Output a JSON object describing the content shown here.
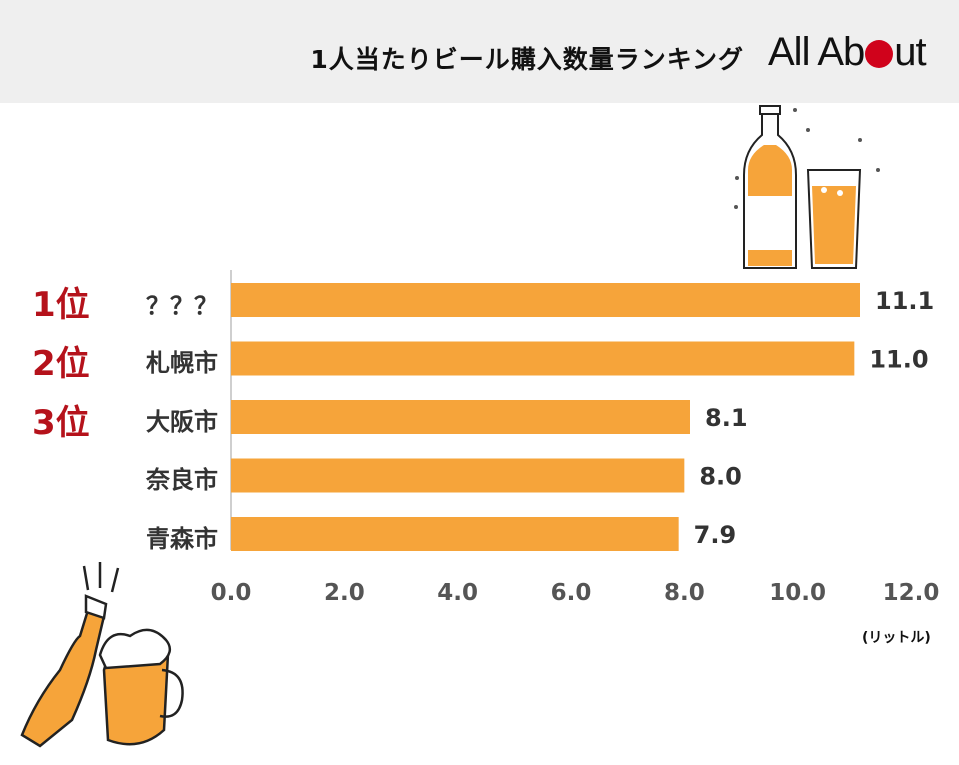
{
  "title": "1人当たりビール購入数量ランキング",
  "logo": {
    "part1": "All Ab",
    "part2": "ut"
  },
  "unit_label": "(リットル)",
  "ranks": [
    "1位",
    "2位",
    "3位"
  ],
  "colors": {
    "bar": "#f6a43a",
    "rank": "#b5121b",
    "header_bg": "#efefef"
  },
  "chart_data": {
    "type": "bar",
    "orientation": "horizontal",
    "title": "1人当たりビール購入数量ランキング",
    "categories": [
      "？？？",
      "札幌市",
      "大阪市",
      "奈良市",
      "青森市"
    ],
    "values": [
      11.1,
      11.0,
      8.1,
      8.0,
      7.9
    ],
    "value_labels": [
      "11.1",
      "11.0",
      "8.1",
      "8.0",
      "7.9"
    ],
    "xlim": [
      0,
      12
    ],
    "x_ticks": [
      "0.0",
      "2.0",
      "4.0",
      "6.0",
      "8.0",
      "10.0",
      "12.0"
    ],
    "xlabel": "(リットル)",
    "grid": false
  }
}
